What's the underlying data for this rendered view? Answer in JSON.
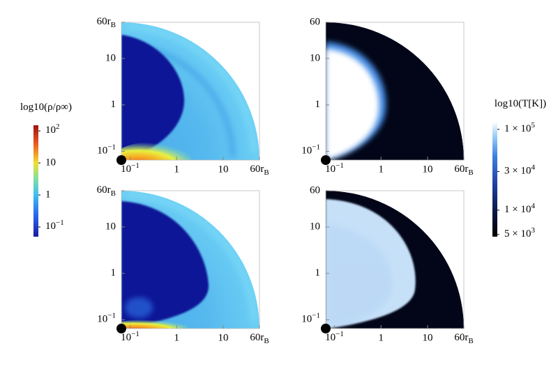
{
  "chart_data": [
    {
      "type": "heatmap",
      "quantity": "density",
      "xscale": "log",
      "yscale": "log",
      "xlim": [
        0.065,
        60
      ],
      "ylim": [
        0.065,
        60
      ],
      "xticks": [
        {
          "value": 0.1,
          "label": "10",
          "sup": "−1"
        },
        1,
        10,
        {
          "value": 60,
          "label": "60r",
          "sub": "B"
        }
      ],
      "yticks": [
        {
          "value": 0.1,
          "label": "10",
          "sup": "−1"
        },
        1,
        10,
        {
          "value": 60,
          "label": "60r",
          "sub": "B"
        }
      ]
    },
    {
      "type": "heatmap",
      "quantity": "temperature",
      "xscale": "log",
      "yscale": "log",
      "xlim": [
        0.065,
        60
      ],
      "ylim": [
        0.065,
        60
      ],
      "xticks": [
        {
          "value": 0.1,
          "label": "10",
          "sup": "−1"
        },
        1,
        10,
        {
          "value": 60,
          "label": "60r",
          "sub": "B"
        }
      ],
      "yticks": [
        {
          "value": 0.1,
          "label": "10",
          "sup": "−1"
        },
        1,
        10,
        60
      ]
    },
    {
      "type": "heatmap",
      "quantity": "density",
      "xscale": "log",
      "yscale": "log",
      "xlim": [
        0.065,
        60
      ],
      "ylim": [
        0.065,
        60
      ],
      "xticks": [
        {
          "value": 0.1,
          "label": "10",
          "sup": "−1"
        },
        1,
        10,
        {
          "value": 60,
          "label": "60r",
          "sub": "B"
        }
      ],
      "yticks": [
        {
          "value": 0.1,
          "label": "10",
          "sup": "−1"
        },
        1,
        10,
        {
          "value": 60,
          "label": "60r",
          "sub": "B"
        }
      ]
    },
    {
      "type": "heatmap",
      "quantity": "temperature",
      "xscale": "log",
      "yscale": "log",
      "xlim": [
        0.065,
        60
      ],
      "ylim": [
        0.065,
        60
      ],
      "xticks": [
        {
          "value": 0.1,
          "label": "10",
          "sup": "−1"
        },
        1,
        10,
        {
          "value": 60,
          "label": "60r",
          "sub": "B"
        }
      ],
      "yticks": [
        {
          "value": 0.1,
          "label": "10",
          "sup": "−1"
        },
        1,
        10,
        60
      ]
    },
    {
      "type": "colorbar",
      "title": "log10(ρ/ρ∞)",
      "colormap": "jet",
      "scale": "log",
      "ylim": [
        0.05,
        150
      ],
      "yticks": [
        {
          "value": 100,
          "label": "10",
          "sup": "2"
        },
        10,
        1,
        {
          "value": 0.1,
          "label": "10",
          "sup": "−1"
        }
      ]
    },
    {
      "type": "colorbar",
      "title": "log10(T[K])",
      "colormap": "ice",
      "scale": "log",
      "ylim": [
        4700,
        124000
      ],
      "yticks": [
        {
          "value": 100000,
          "label": "1 × 10",
          "sup": "5"
        },
        {
          "value": 30000,
          "label": "3 × 10",
          "sup": "4"
        },
        {
          "value": 10000,
          "label": "1 × 10",
          "sup": "4"
        },
        {
          "value": 5000,
          "label": "5 × 10",
          "sup": "3"
        }
      ]
    }
  ]
}
